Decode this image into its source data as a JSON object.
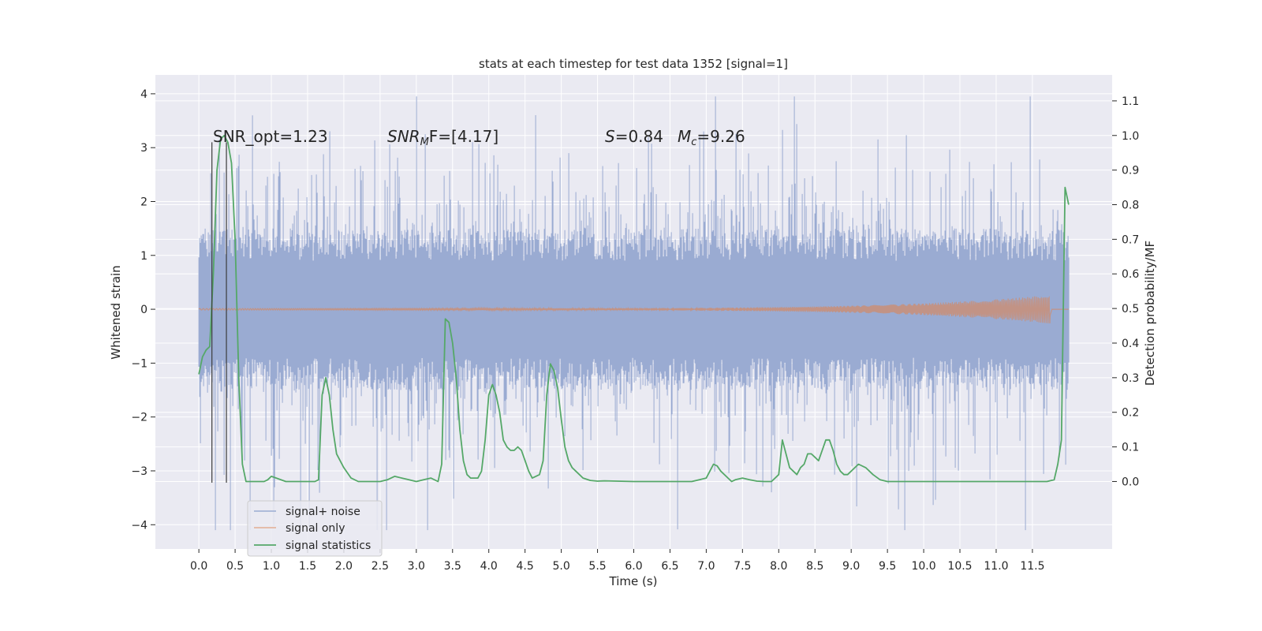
{
  "colors": {
    "plot_background": "#eaeaf2",
    "grid": "#ffffff",
    "signal_noise": "#9aabd2",
    "signal_only": "#dd8452",
    "signal_statistics": "#55a868",
    "event_lines": "#3b3b3b",
    "text": "#262626"
  },
  "chart_data": {
    "type": "line",
    "title": "stats at each timestep for test data 1352 [signal=1]",
    "xlabel": "Time (s)",
    "ylabel": "Whitened strain",
    "y2label": "Detection probability/MF",
    "xlim": [
      -0.6,
      12.6
    ],
    "ylim": [
      -4.45,
      4.35
    ],
    "y2lim": [
      -0.195,
      1.175
    ],
    "grid": true,
    "x_ticks": [
      "0.0",
      "0.5",
      "1.0",
      "1.5",
      "2.0",
      "2.5",
      "3.0",
      "3.5",
      "4.0",
      "4.5",
      "5.0",
      "5.5",
      "6.0",
      "6.5",
      "7.0",
      "7.5",
      "8.0",
      "8.5",
      "9.0",
      "9.5",
      "10.0",
      "10.5",
      "11.0",
      "11.5"
    ],
    "y_ticks": [
      "4",
      "3",
      "2",
      "1",
      "0",
      "−1",
      "−2",
      "−3",
      "−4"
    ],
    "y2_ticks": [
      "1.1",
      "1.0",
      "0.9",
      "0.8",
      "0.7",
      "0.6",
      "0.5",
      "0.4",
      "0.3",
      "0.2",
      "0.1",
      "0.0"
    ],
    "legend": {
      "position": "lower-left",
      "entries": [
        "signal+ noise",
        "signal only",
        "signal statistics"
      ]
    },
    "annotations": {
      "snr_opt": "SNR_opt=1.23",
      "snr_mf_sym": "SNR",
      "snr_mf_sub": "M",
      "snr_mf_rest": "F=[4.17]",
      "s_sym": "S",
      "s_rest": "=0.84",
      "mc_sym": "M",
      "mc_sub": "c",
      "mc_rest": "=9.26"
    },
    "event_lines_x": [
      0.18,
      0.38
    ],
    "event_lines_y": [
      -3.22,
      3.1
    ],
    "noise_series": {
      "name": "signal+ noise",
      "x_range": [
        0.0,
        12.0
      ],
      "typical_amplitude": 1.2,
      "peak_range": [
        -4.1,
        3.95
      ]
    },
    "signal_only_series": {
      "name": "signal only",
      "chirp_end_x": 11.75,
      "peak_amplitude": 0.25
    },
    "statistics_series": {
      "name": "signal statistics",
      "x": [
        0.0,
        0.05,
        0.1,
        0.15,
        0.2,
        0.25,
        0.3,
        0.35,
        0.4,
        0.45,
        0.5,
        0.55,
        0.6,
        0.65,
        0.7,
        0.75,
        0.8,
        0.9,
        0.95,
        1.0,
        1.2,
        1.4,
        1.5,
        1.6,
        1.65,
        1.7,
        1.75,
        1.8,
        1.85,
        1.9,
        2.0,
        2.1,
        2.2,
        2.5,
        2.6,
        2.7,
        2.8,
        2.9,
        3.0,
        3.1,
        3.2,
        3.3,
        3.35,
        3.4,
        3.45,
        3.5,
        3.55,
        3.6,
        3.65,
        3.7,
        3.75,
        3.8,
        3.85,
        3.9,
        3.95,
        4.0,
        4.05,
        4.1,
        4.15,
        4.2,
        4.25,
        4.3,
        4.35,
        4.4,
        4.45,
        4.5,
        4.55,
        4.6,
        4.65,
        4.7,
        4.75,
        4.8,
        4.85,
        4.9,
        4.95,
        5.0,
        5.05,
        5.1,
        5.15,
        5.2,
        5.3,
        5.4,
        5.5,
        5.6,
        6.0,
        6.5,
        6.8,
        7.0,
        7.05,
        7.1,
        7.15,
        7.2,
        7.3,
        7.35,
        7.4,
        7.5,
        7.6,
        7.7,
        7.8,
        7.9,
        8.0,
        8.05,
        8.1,
        8.15,
        8.2,
        8.25,
        8.3,
        8.35,
        8.4,
        8.45,
        8.5,
        8.55,
        8.6,
        8.65,
        8.7,
        8.75,
        8.8,
        8.85,
        8.9,
        8.95,
        9.0,
        9.05,
        9.1,
        9.2,
        9.3,
        9.4,
        9.5,
        9.6,
        10.0,
        10.1,
        10.5,
        11.0,
        11.1,
        11.3,
        11.5,
        11.6,
        11.7,
        11.8,
        11.85,
        11.9,
        11.95,
        12.0
      ],
      "y": [
        0.31,
        0.36,
        0.38,
        0.39,
        0.6,
        0.9,
        0.99,
        1.0,
        0.98,
        0.92,
        0.7,
        0.3,
        0.05,
        0.0,
        0.0,
        0.0,
        0.0,
        0.0,
        0.005,
        0.015,
        0.0,
        0.0,
        0.0,
        0.0,
        0.005,
        0.25,
        0.3,
        0.25,
        0.15,
        0.08,
        0.04,
        0.01,
        0.0,
        0.0,
        0.005,
        0.015,
        0.01,
        0.005,
        0.0,
        0.005,
        0.01,
        0.0,
        0.05,
        0.47,
        0.46,
        0.4,
        0.3,
        0.15,
        0.06,
        0.02,
        0.01,
        0.01,
        0.01,
        0.03,
        0.12,
        0.25,
        0.28,
        0.25,
        0.2,
        0.12,
        0.1,
        0.09,
        0.09,
        0.1,
        0.09,
        0.06,
        0.03,
        0.01,
        0.015,
        0.02,
        0.06,
        0.25,
        0.34,
        0.32,
        0.27,
        0.18,
        0.1,
        0.06,
        0.04,
        0.03,
        0.01,
        0.003,
        0.001,
        0.002,
        0.0,
        0.0,
        0.0,
        0.01,
        0.03,
        0.05,
        0.045,
        0.03,
        0.01,
        0.0,
        0.005,
        0.01,
        0.005,
        0.001,
        0.0,
        0.0,
        0.02,
        0.12,
        0.08,
        0.04,
        0.03,
        0.02,
        0.04,
        0.05,
        0.08,
        0.08,
        0.07,
        0.06,
        0.09,
        0.12,
        0.12,
        0.09,
        0.05,
        0.03,
        0.02,
        0.02,
        0.03,
        0.04,
        0.05,
        0.04,
        0.02,
        0.005,
        0.0,
        0.0,
        0.0,
        0.0,
        0.0,
        0.0,
        0.0,
        0.0,
        0.0,
        0.0,
        0.0,
        0.005,
        0.05,
        0.12,
        0.85,
        0.8
      ]
    }
  }
}
